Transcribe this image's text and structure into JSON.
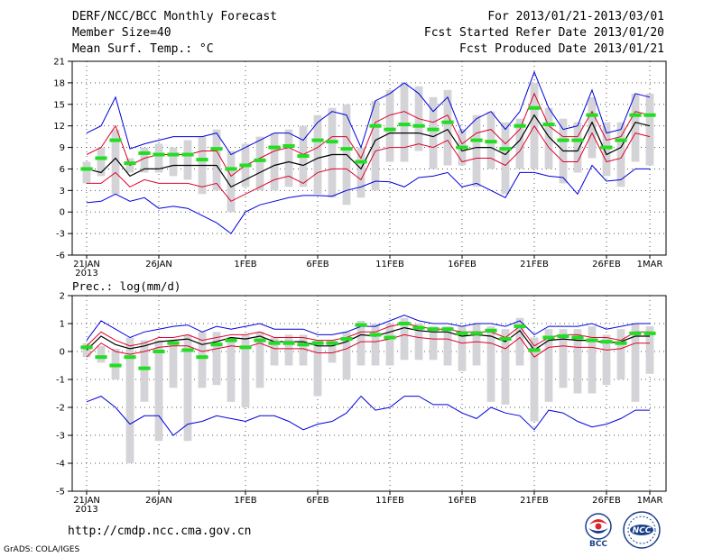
{
  "header": {
    "title": "DERF/NCC/BCC Monthly Forecast",
    "member_size": "Member Size=40",
    "variable": "Mean Surf. Temp.: °C",
    "period": "For 2013/01/21-2013/03/01",
    "started": "Fcst Started Refer Date 2013/01/20",
    "produced": "Fcst Produced Date 2013/01/21"
  },
  "footer": {
    "url": "http://cmdp.ncc.cma.gov.cn",
    "credit": "GrADS: COLA/IGES",
    "logo_left": "BCC",
    "logo_right": "NCC"
  },
  "colors": {
    "spread": "#d4d4d8",
    "mean": "#000000",
    "percentile": "#e0002a",
    "extreme": "#0000dd",
    "climatology": "#22dd22"
  },
  "chart_data": [
    {
      "type": "line",
      "title": "Mean Surf. Temp.: °C",
      "ylim": [
        -6,
        21
      ],
      "yticks": [
        -6,
        -3,
        0,
        3,
        6,
        9,
        12,
        15,
        18,
        21
      ],
      "xtick_labels": [
        {
          "day": 0,
          "label": "21JAN",
          "sub": "2013"
        },
        {
          "day": 5,
          "label": "26JAN"
        },
        {
          "day": 11,
          "label": "1FEB"
        },
        {
          "day": 16,
          "label": "6FEB"
        },
        {
          "day": 21,
          "label": "11FEB"
        },
        {
          "day": 26,
          "label": "16FEB"
        },
        {
          "day": 31,
          "label": "21FEB"
        },
        {
          "day": 36,
          "label": "26FEB"
        },
        {
          "day": 39,
          "label": "1MAR"
        }
      ],
      "days": 40,
      "series": [
        {
          "name": "max",
          "values": [
            11.0,
            12.0,
            16.0,
            8.8,
            9.5,
            10.0,
            10.5,
            10.5,
            10.5,
            11.0,
            8.0,
            9.0,
            10.0,
            11.0,
            11.0,
            10.0,
            12.5,
            14.0,
            13.5,
            9.0,
            15.5,
            16.5,
            18.0,
            16.5,
            14.0,
            16.0,
            11.0,
            13.0,
            14.0,
            11.5,
            14.0,
            19.5,
            14.5,
            11.5,
            12.0,
            17.0,
            11.0,
            11.5,
            16.5,
            16.0
          ]
        },
        {
          "name": "upper",
          "values": [
            8.0,
            9.0,
            12.0,
            6.5,
            7.5,
            8.0,
            8.0,
            8.0,
            8.5,
            8.5,
            5.0,
            6.5,
            7.5,
            8.5,
            9.0,
            8.0,
            9.0,
            10.5,
            10.5,
            7.5,
            12.5,
            13.5,
            14.0,
            13.0,
            12.5,
            13.5,
            9.5,
            11.0,
            11.5,
            9.5,
            11.5,
            16.5,
            12.0,
            10.5,
            10.5,
            14.0,
            10.0,
            10.5,
            14.0,
            13.5
          ]
        },
        {
          "name": "mean",
          "values": [
            6.0,
            5.5,
            7.5,
            5.0,
            6.0,
            6.0,
            6.5,
            6.5,
            6.5,
            6.5,
            3.5,
            4.5,
            5.5,
            6.5,
            7.0,
            6.5,
            7.5,
            8.0,
            8.0,
            6.0,
            10.0,
            11.0,
            11.0,
            11.0,
            10.5,
            11.5,
            8.5,
            9.0,
            9.0,
            8.0,
            10.0,
            13.5,
            10.5,
            8.5,
            8.5,
            12.5,
            8.0,
            9.0,
            12.5,
            12.0
          ]
        },
        {
          "name": "lower",
          "values": [
            4.0,
            4.0,
            5.5,
            3.5,
            4.5,
            4.0,
            4.0,
            4.0,
            3.5,
            4.0,
            1.5,
            2.5,
            3.5,
            4.5,
            5.0,
            4.0,
            5.5,
            6.0,
            6.0,
            4.5,
            8.5,
            9.0,
            9.0,
            9.5,
            9.0,
            10.0,
            7.0,
            7.5,
            7.5,
            6.5,
            8.5,
            12.0,
            9.0,
            7.0,
            7.0,
            11.0,
            7.0,
            7.5,
            11.0,
            10.5
          ]
        },
        {
          "name": "min",
          "values": [
            1.3,
            1.5,
            2.5,
            1.5,
            2.0,
            0.5,
            0.8,
            0.5,
            -0.5,
            -1.5,
            -3.0,
            0.0,
            1.0,
            1.5,
            2.0,
            2.3,
            2.3,
            2.2,
            3.0,
            3.5,
            4.3,
            4.2,
            3.5,
            4.8,
            5.0,
            5.5,
            3.5,
            4.0,
            3.0,
            2.0,
            5.5,
            5.5,
            5.0,
            4.8,
            2.5,
            6.5,
            4.3,
            4.5,
            6.0,
            6.0
          ]
        }
      ],
      "spread": {
        "low": [
          4.0,
          5.0,
          2.5,
          5.5,
          5.5,
          5.5,
          5.0,
          4.5,
          2.5,
          3.0,
          0.0,
          3.5,
          3.0,
          3.0,
          3.5,
          3.5,
          2.5,
          2.0,
          1.0,
          2.0,
          3.0,
          7.0,
          7.0,
          8.5,
          6.0,
          6.5,
          6.5,
          3.5,
          6.0,
          2.5,
          6.0,
          6.0,
          6.0,
          4.0,
          5.5,
          7.5,
          5.0,
          3.5,
          7.0,
          6.5
        ],
        "high": [
          7.0,
          9.0,
          11.5,
          7.5,
          9.0,
          9.5,
          9.0,
          10.0,
          10.5,
          11.5,
          8.5,
          9.5,
          10.5,
          11.0,
          11.5,
          12.0,
          13.5,
          14.5,
          15.0,
          9.0,
          15.5,
          17.0,
          18.0,
          17.5,
          16.0,
          17.0,
          11.5,
          13.5,
          14.0,
          12.5,
          13.0,
          18.0,
          14.5,
          13.0,
          12.5,
          16.0,
          12.5,
          12.5,
          16.5,
          16.5
        ]
      },
      "climatology": [
        6.0,
        7.5,
        10.0,
        6.8,
        8.2,
        8.0,
        8.0,
        8.0,
        7.3,
        8.8,
        6.0,
        6.5,
        7.2,
        9.0,
        9.2,
        7.8,
        10.0,
        9.8,
        8.8,
        7.0,
        12.0,
        11.5,
        12.2,
        12.0,
        11.5,
        12.5,
        9.0,
        10.0,
        9.8,
        8.8,
        12.0,
        14.5,
        12.2,
        10.0,
        10.0,
        13.5,
        9.0,
        10.0,
        13.5,
        13.5
      ]
    },
    {
      "type": "line",
      "title": "Prec.: log(mm/d)",
      "ylim": [
        -5,
        2
      ],
      "yticks": [
        -5,
        -4,
        -3,
        -2,
        -1,
        0,
        1,
        2
      ],
      "xtick_labels": [
        {
          "day": 0,
          "label": "21JAN",
          "sub": "2013"
        },
        {
          "day": 5,
          "label": "26JAN"
        },
        {
          "day": 11,
          "label": "1FEB"
        },
        {
          "day": 16,
          "label": "6FEB"
        },
        {
          "day": 21,
          "label": "11FEB"
        },
        {
          "day": 26,
          "label": "16FEB"
        },
        {
          "day": 31,
          "label": "21FEB"
        },
        {
          "day": 36,
          "label": "26FEB"
        },
        {
          "day": 39,
          "label": "1MAR"
        }
      ],
      "days": 40,
      "series": [
        {
          "name": "max",
          "values": [
            0.4,
            1.1,
            0.8,
            0.5,
            0.7,
            0.8,
            0.9,
            0.95,
            0.7,
            0.9,
            0.8,
            0.9,
            1.0,
            0.8,
            0.8,
            0.8,
            0.6,
            0.6,
            0.7,
            0.9,
            0.9,
            1.1,
            1.3,
            1.1,
            1.0,
            1.0,
            0.9,
            1.0,
            1.0,
            0.9,
            1.1,
            0.6,
            0.9,
            0.9,
            0.9,
            1.0,
            0.8,
            0.9,
            1.0,
            1.0
          ]
        },
        {
          "name": "upper",
          "values": [
            0.2,
            0.7,
            0.4,
            0.2,
            0.3,
            0.5,
            0.5,
            0.6,
            0.4,
            0.5,
            0.6,
            0.6,
            0.7,
            0.5,
            0.5,
            0.5,
            0.4,
            0.4,
            0.5,
            0.7,
            0.7,
            0.9,
            1.0,
            0.9,
            0.8,
            0.8,
            0.7,
            0.7,
            0.7,
            0.5,
            0.9,
            0.2,
            0.5,
            0.6,
            0.6,
            0.5,
            0.5,
            0.4,
            0.7,
            0.7
          ]
        },
        {
          "name": "mean",
          "values": [
            0.05,
            0.55,
            0.25,
            0.1,
            0.2,
            0.35,
            0.4,
            0.45,
            0.25,
            0.35,
            0.5,
            0.45,
            0.55,
            0.35,
            0.35,
            0.35,
            0.2,
            0.2,
            0.35,
            0.6,
            0.55,
            0.7,
            0.85,
            0.75,
            0.7,
            0.7,
            0.55,
            0.6,
            0.55,
            0.35,
            0.75,
            0.05,
            0.4,
            0.45,
            0.4,
            0.4,
            0.3,
            0.35,
            0.55,
            0.55
          ]
        },
        {
          "name": "lower",
          "values": [
            -0.2,
            0.3,
            0.0,
            -0.1,
            0.0,
            0.15,
            0.2,
            0.2,
            0.0,
            0.1,
            0.2,
            0.15,
            0.3,
            0.1,
            0.1,
            0.1,
            -0.05,
            -0.05,
            0.1,
            0.35,
            0.35,
            0.45,
            0.6,
            0.5,
            0.45,
            0.45,
            0.3,
            0.35,
            0.3,
            0.1,
            0.5,
            -0.2,
            0.15,
            0.2,
            0.15,
            0.15,
            0.05,
            0.1,
            0.3,
            0.3
          ]
        },
        {
          "name": "min",
          "values": [
            -1.8,
            -1.6,
            -2.0,
            -2.6,
            -2.3,
            -2.3,
            -3.0,
            -2.6,
            -2.5,
            -2.3,
            -2.4,
            -2.5,
            -2.3,
            -2.3,
            -2.5,
            -2.8,
            -2.6,
            -2.5,
            -2.2,
            -1.6,
            -2.1,
            -2.0,
            -1.6,
            -1.6,
            -1.9,
            -1.9,
            -2.2,
            -2.4,
            -2.0,
            -2.2,
            -2.3,
            -2.8,
            -2.1,
            -2.2,
            -2.5,
            -2.7,
            -2.6,
            -2.4,
            -2.1,
            -2.1
          ]
        }
      ],
      "spread": {
        "low": [
          -0.2,
          -0.4,
          -1.0,
          -4.0,
          -1.8,
          -3.2,
          -1.3,
          -3.2,
          -1.3,
          -1.2,
          -1.8,
          -2.0,
          -1.3,
          -0.5,
          -0.5,
          -0.5,
          -1.6,
          -0.4,
          -1.0,
          -0.5,
          -0.5,
          -0.5,
          -0.3,
          -0.3,
          -0.3,
          -0.5,
          -0.7,
          -0.5,
          -1.8,
          -1.9,
          -0.5,
          -2.5,
          -1.8,
          -1.3,
          -1.5,
          -1.5,
          -1.2,
          -1.0,
          -1.8,
          -0.8
        ],
        "high": [
          0.3,
          0.2,
          0.1,
          0.5,
          0.4,
          0.4,
          0.4,
          0.6,
          0.7,
          0.7,
          0.5,
          0.6,
          0.7,
          0.5,
          0.6,
          0.6,
          0.4,
          0.4,
          0.7,
          1.1,
          1.0,
          1.0,
          1.2,
          1.0,
          0.9,
          0.9,
          0.9,
          1.0,
          0.9,
          0.8,
          1.2,
          0.5,
          0.8,
          0.8,
          0.8,
          0.9,
          0.6,
          0.8,
          1.0,
          0.9
        ]
      },
      "climatology": [
        0.15,
        -0.2,
        -0.5,
        -0.2,
        -0.6,
        0.0,
        0.3,
        0.05,
        -0.2,
        0.25,
        0.4,
        0.15,
        0.4,
        0.3,
        0.3,
        0.25,
        0.3,
        0.3,
        0.45,
        0.95,
        0.6,
        0.5,
        1.0,
        0.85,
        0.8,
        0.8,
        0.65,
        0.65,
        0.75,
        0.45,
        0.9,
        0.05,
        0.5,
        0.55,
        0.5,
        0.4,
        0.35,
        0.3,
        0.65,
        0.65
      ]
    }
  ]
}
